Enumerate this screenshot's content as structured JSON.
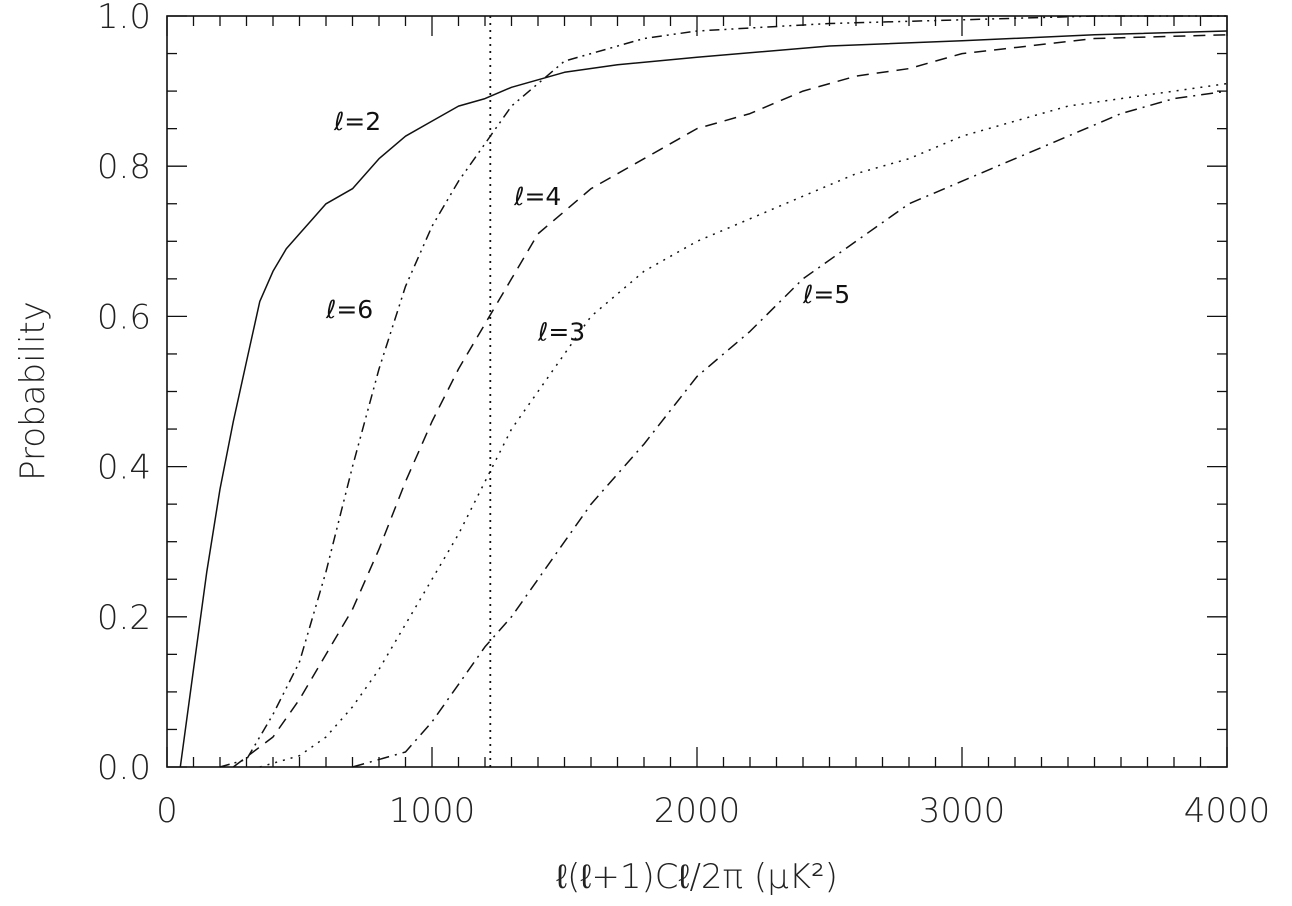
{
  "chart_data": {
    "type": "line",
    "xlabel": "ℓ(ℓ+1)Cℓ/2π (μK²)",
    "ylabel": "Probability",
    "xlim": [
      0,
      4000
    ],
    "ylim": [
      0,
      1.0
    ],
    "xticks": [
      0,
      1000,
      2000,
      3000,
      4000
    ],
    "yticks": [
      0.0,
      0.2,
      0.4,
      0.6,
      0.8,
      1.0
    ],
    "xtick_labels": [
      "0",
      "1000",
      "2000",
      "3000",
      "4000"
    ],
    "ytick_labels": [
      "0.0",
      "0.2",
      "0.4",
      "0.6",
      "0.8",
      "1.0"
    ],
    "vertical_line": {
      "x": 1220,
      "style": "dotted"
    },
    "series": [
      {
        "name": "ℓ=2",
        "style": "solid",
        "x": [
          50,
          100,
          150,
          200,
          250,
          300,
          350,
          400,
          450,
          500,
          550,
          600,
          700,
          800,
          900,
          1000,
          1100,
          1200,
          1300,
          1400,
          1500,
          1700,
          2000,
          2500,
          3000,
          3500,
          4000
        ],
        "y": [
          0.0,
          0.13,
          0.26,
          0.37,
          0.46,
          0.54,
          0.62,
          0.66,
          0.69,
          0.71,
          0.73,
          0.75,
          0.77,
          0.81,
          0.84,
          0.86,
          0.88,
          0.89,
          0.905,
          0.915,
          0.925,
          0.935,
          0.945,
          0.96,
          0.967,
          0.975,
          0.98
        ]
      },
      {
        "name": "ℓ=3",
        "style": "dotted",
        "x": [
          350,
          500,
          600,
          700,
          800,
          900,
          1000,
          1100,
          1200,
          1300,
          1400,
          1500,
          1600,
          1800,
          2000,
          2200,
          2400,
          2600,
          2800,
          3000,
          3200,
          3400,
          3600,
          3800,
          4000
        ],
        "y": [
          0.0,
          0.015,
          0.04,
          0.08,
          0.13,
          0.19,
          0.25,
          0.31,
          0.38,
          0.45,
          0.5,
          0.55,
          0.6,
          0.66,
          0.7,
          0.73,
          0.76,
          0.79,
          0.81,
          0.84,
          0.86,
          0.88,
          0.89,
          0.9,
          0.91
        ]
      },
      {
        "name": "ℓ=4",
        "style": "dashed",
        "x": [
          250,
          400,
          500,
          600,
          700,
          800,
          900,
          1000,
          1100,
          1200,
          1300,
          1400,
          1500,
          1600,
          1800,
          2000,
          2200,
          2400,
          2600,
          2800,
          3000,
          3500,
          4000
        ],
        "y": [
          0.0,
          0.04,
          0.09,
          0.15,
          0.21,
          0.29,
          0.38,
          0.46,
          0.53,
          0.59,
          0.65,
          0.71,
          0.74,
          0.77,
          0.81,
          0.85,
          0.87,
          0.9,
          0.92,
          0.93,
          0.95,
          0.97,
          0.975
        ]
      },
      {
        "name": "ℓ=5",
        "style": "dash-dot",
        "x": [
          700,
          900,
          1000,
          1100,
          1200,
          1300,
          1400,
          1500,
          1600,
          1800,
          2000,
          2200,
          2400,
          2600,
          2800,
          3000,
          3200,
          3400,
          3600,
          3800,
          4000
        ],
        "y": [
          0.0,
          0.02,
          0.06,
          0.11,
          0.16,
          0.2,
          0.25,
          0.3,
          0.35,
          0.43,
          0.52,
          0.58,
          0.65,
          0.7,
          0.75,
          0.78,
          0.81,
          0.84,
          0.87,
          0.89,
          0.9
        ]
      },
      {
        "name": "ℓ=6",
        "style": "dash-dot-dot",
        "x": [
          200,
          300,
          400,
          500,
          600,
          700,
          800,
          900,
          1000,
          1100,
          1200,
          1300,
          1400,
          1500,
          1600,
          1800,
          2000,
          2500,
          3000,
          3500,
          4000
        ],
        "y": [
          0.0,
          0.01,
          0.07,
          0.14,
          0.26,
          0.4,
          0.53,
          0.64,
          0.72,
          0.78,
          0.83,
          0.88,
          0.91,
          0.94,
          0.95,
          0.97,
          0.98,
          0.99,
          0.995,
          1.0,
          1.0
        ]
      }
    ],
    "curve_labels": [
      {
        "text": "ℓ=2",
        "x": 630,
        "y": 0.86
      },
      {
        "text": "ℓ=4",
        "x": 1310,
        "y": 0.76
      },
      {
        "text": "ℓ=6",
        "x": 600,
        "y": 0.61
      },
      {
        "text": "ℓ=3",
        "x": 1400,
        "y": 0.58
      },
      {
        "text": "ℓ=5",
        "x": 2400,
        "y": 0.63
      }
    ]
  }
}
